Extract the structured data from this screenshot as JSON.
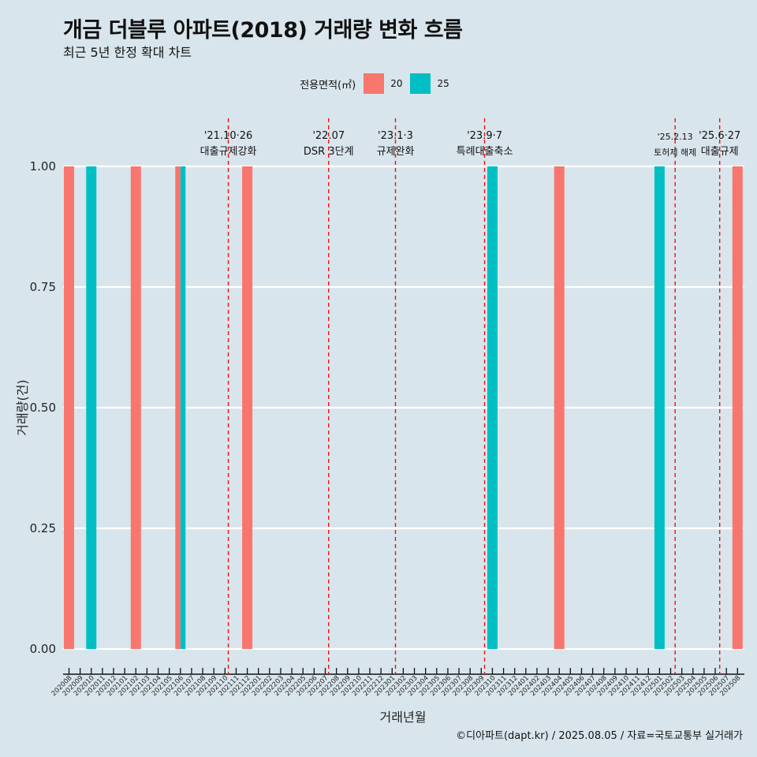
{
  "header": {
    "title": "개금 더블루 아파트(2018) 거래량 변화 흐름",
    "subtitle": "최근 5년 한정 확대 차트"
  },
  "legend": {
    "title": "전용면적(㎡)",
    "items": [
      {
        "label": "20",
        "color": "#f8766d"
      },
      {
        "label": "25",
        "color": "#00bfc4"
      }
    ]
  },
  "caption": "©디아파트(dapt.kr) / 2025.08.05 / 자료=국토교통부 실거래가",
  "chart_data": {
    "type": "bar",
    "xlabel": "거래년월",
    "ylabel": "거래량(건)",
    "ylim": [
      0,
      1
    ],
    "yticks": [
      "0.00",
      "0.25",
      "0.50",
      "0.75",
      "1.00"
    ],
    "categories": [
      "202008",
      "202009",
      "202010",
      "202011",
      "202012",
      "202101",
      "202102",
      "202103",
      "202104",
      "202105",
      "202106",
      "202107",
      "202108",
      "202109",
      "202110",
      "202111",
      "202112",
      "202201",
      "202202",
      "202203",
      "202204",
      "202205",
      "202206",
      "202207",
      "202208",
      "202209",
      "202210",
      "202211",
      "202212",
      "202301",
      "202302",
      "202303",
      "202304",
      "202305",
      "202306",
      "202307",
      "202308",
      "202309",
      "202310",
      "202311",
      "202312",
      "202401",
      "202402",
      "202403",
      "202404",
      "202405",
      "202406",
      "202407",
      "202408",
      "202409",
      "202410",
      "202411",
      "202412",
      "202501",
      "202502",
      "202503",
      "202504",
      "202505",
      "202506",
      "202507",
      "202508"
    ],
    "series": [
      {
        "name": "20",
        "color": "#f8766d",
        "points": [
          {
            "x": "202008",
            "y": 1,
            "share": "full"
          },
          {
            "x": "202102",
            "y": 1,
            "share": "full"
          },
          {
            "x": "202106",
            "y": 1,
            "share": "left"
          },
          {
            "x": "202112",
            "y": 1,
            "share": "full"
          },
          {
            "x": "202404",
            "y": 1,
            "share": "full"
          },
          {
            "x": "202508",
            "y": 1,
            "share": "full"
          }
        ]
      },
      {
        "name": "25",
        "color": "#00bfc4",
        "points": [
          {
            "x": "202010",
            "y": 1,
            "share": "full"
          },
          {
            "x": "202106",
            "y": 1,
            "share": "right"
          },
          {
            "x": "202310",
            "y": 1,
            "share": "full"
          },
          {
            "x": "202501",
            "y": 1,
            "share": "full"
          }
        ]
      }
    ],
    "events": [
      {
        "pos": 14.3,
        "date": "'21.10·26",
        "label": "대출규제강화",
        "small": false
      },
      {
        "pos": 23.3,
        "date": "'22.07",
        "label": "DSR 3단계",
        "small": false
      },
      {
        "pos": 29.3,
        "date": "'23.1·3",
        "label": "규제완화",
        "small": false
      },
      {
        "pos": 37.3,
        "date": "'23.9·7",
        "label": "특례대출축소",
        "small": false
      },
      {
        "pos": 54.4,
        "date": "'25.2.13",
        "label": "토허제 해제",
        "small": true
      },
      {
        "pos": 58.4,
        "date": "'25.6·27",
        "label": "대출규제",
        "small": false
      }
    ],
    "grid": true,
    "legend_position": "top"
  }
}
